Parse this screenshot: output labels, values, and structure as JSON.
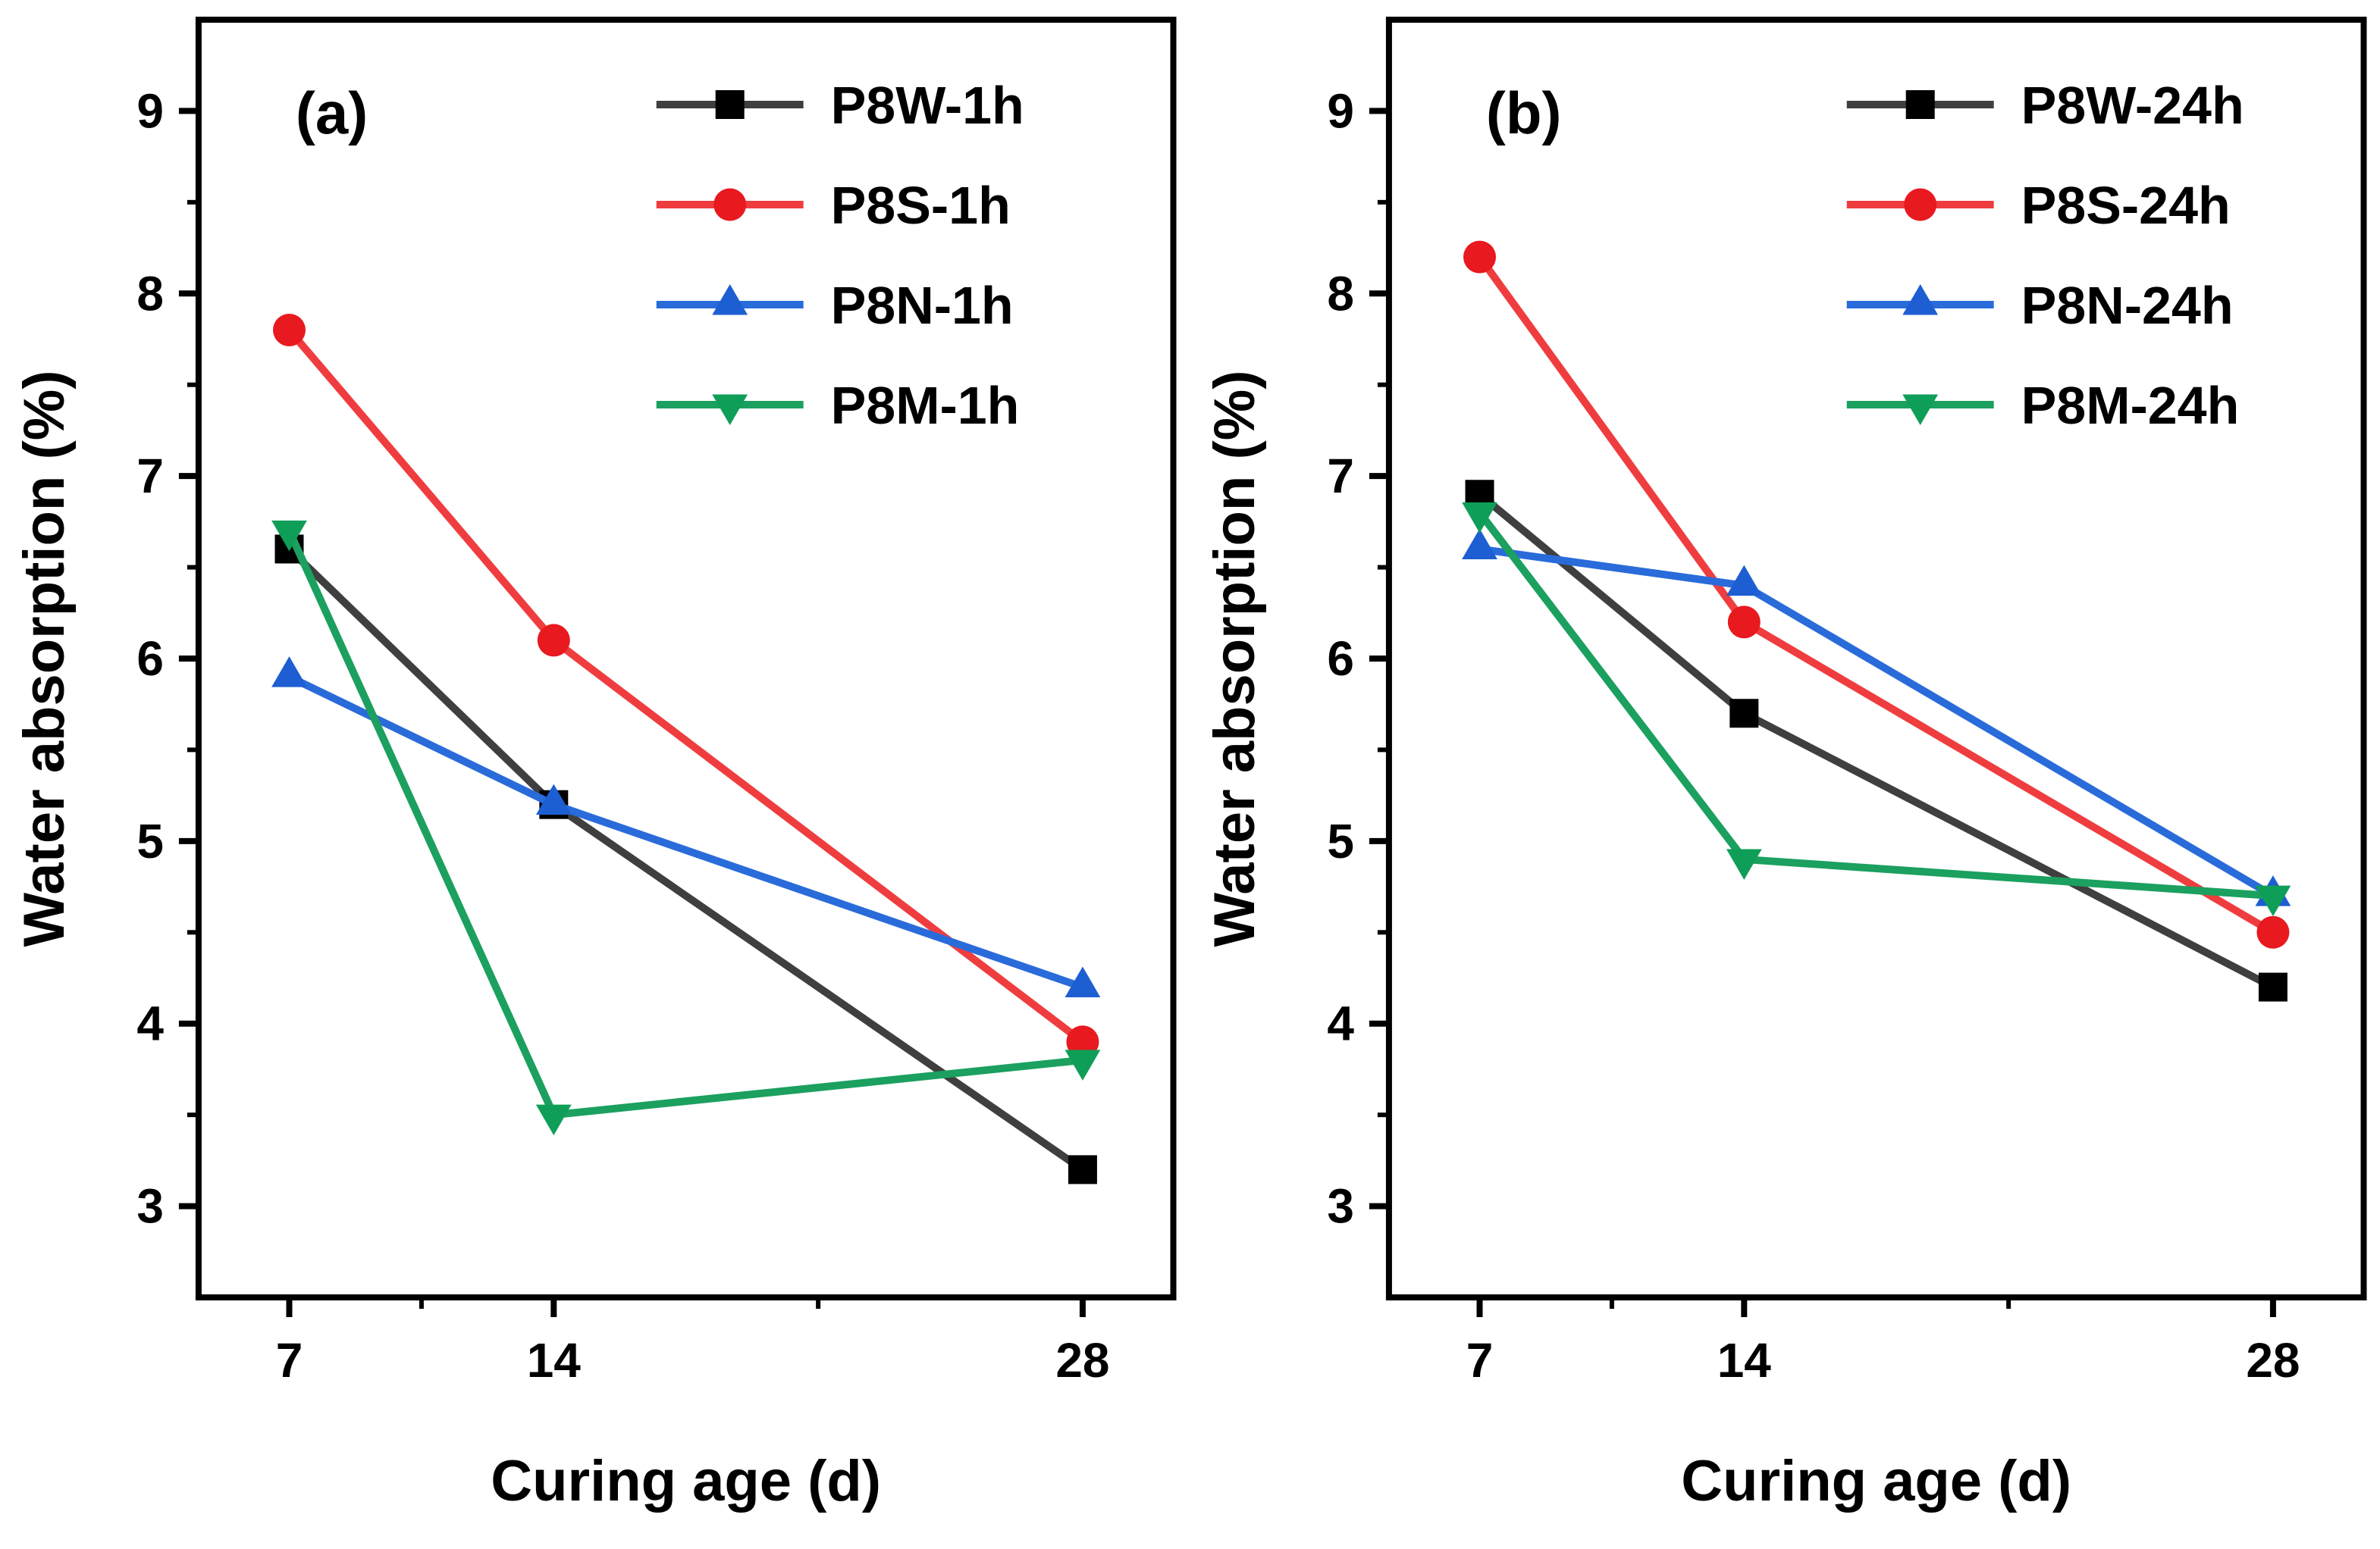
{
  "figure": {
    "background": "#ffffff",
    "axis_color": "#000000",
    "text_color": "#000000"
  },
  "chart_data": [
    {
      "type": "line",
      "panel_label": "(a)",
      "title": "",
      "xlabel": "Curing age (d)",
      "ylabel": "Water absorption (%)",
      "x": [
        7,
        14,
        28
      ],
      "xticks": [
        7,
        14,
        28
      ],
      "yticks": [
        3,
        4,
        5,
        6,
        7,
        8,
        9
      ],
      "x_minor_ticks": [
        10.5,
        21
      ],
      "y_minor_ticks": [
        3.5,
        4.5,
        5.5,
        6.5,
        7.5,
        8.5
      ],
      "xlim": [
        4.6,
        30.4
      ],
      "ylim": [
        2.5,
        9.5
      ],
      "grid": false,
      "legend_position": "top-right",
      "series": [
        {
          "name": "P8W-1h",
          "marker": "square",
          "line_color": "#3f3f3f",
          "marker_color": "#000000",
          "values": [
            6.6,
            5.2,
            3.2
          ]
        },
        {
          "name": "P8S-1h",
          "marker": "circle",
          "line_color": "#ef3d3f",
          "marker_color": "#e8191f",
          "values": [
            7.8,
            6.1,
            3.9
          ]
        },
        {
          "name": "P8N-1h",
          "marker": "triangle-up",
          "line_color": "#2a6bda",
          "marker_color": "#1d5ed2",
          "values": [
            5.9,
            5.2,
            4.2
          ]
        },
        {
          "name": "P8M-1h",
          "marker": "triangle-down",
          "line_color": "#1ba05f",
          "marker_color": "#0f9e58",
          "values": [
            6.7,
            3.5,
            3.8
          ]
        }
      ]
    },
    {
      "type": "line",
      "panel_label": "(b)",
      "title": "",
      "xlabel": "Curing age (d)",
      "ylabel": "Water absorption (%)",
      "x": [
        7,
        14,
        28
      ],
      "xticks": [
        7,
        14,
        28
      ],
      "yticks": [
        3,
        4,
        5,
        6,
        7,
        8,
        9
      ],
      "x_minor_ticks": [
        10.5,
        21
      ],
      "y_minor_ticks": [
        3.5,
        4.5,
        5.5,
        6.5,
        7.5,
        8.5
      ],
      "xlim": [
        4.6,
        30.4
      ],
      "ylim": [
        2.5,
        9.5
      ],
      "grid": false,
      "legend_position": "top-right",
      "series": [
        {
          "name": "P8W-24h",
          "marker": "square",
          "line_color": "#3f3f3f",
          "marker_color": "#000000",
          "values": [
            6.9,
            5.7,
            4.2
          ]
        },
        {
          "name": "P8S-24h",
          "marker": "circle",
          "line_color": "#ef3d3f",
          "marker_color": "#e8191f",
          "values": [
            8.2,
            6.2,
            4.5
          ]
        },
        {
          "name": "P8N-24h",
          "marker": "triangle-up",
          "line_color": "#2a6bda",
          "marker_color": "#1d5ed2",
          "values": [
            6.6,
            6.4,
            4.7
          ]
        },
        {
          "name": "P8M-24h",
          "marker": "triangle-down",
          "line_color": "#1ba05f",
          "marker_color": "#0f9e58",
          "values": [
            6.8,
            4.9,
            4.7
          ]
        }
      ]
    }
  ]
}
